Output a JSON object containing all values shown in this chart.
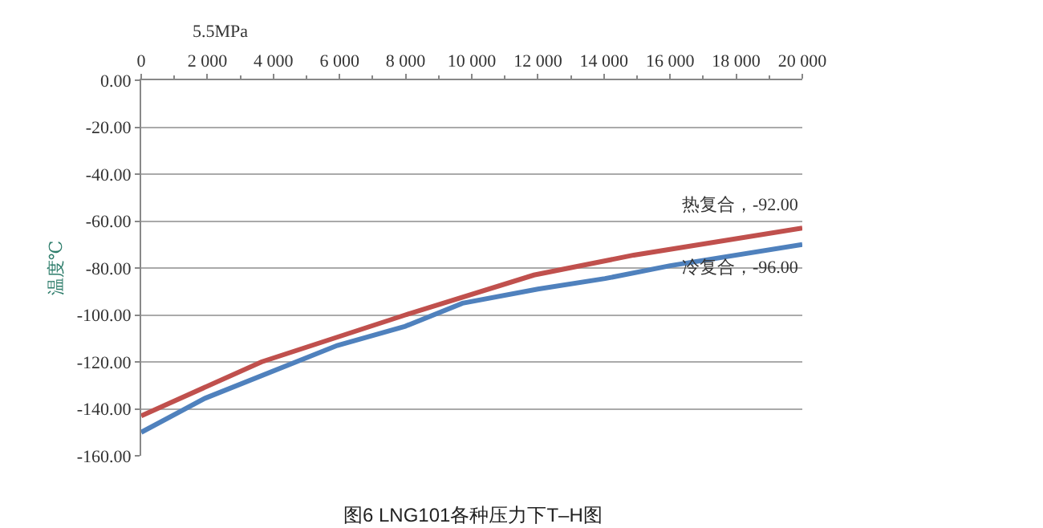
{
  "chart_data": {
    "type": "line",
    "title": "5.5MPa",
    "ylabel": "温度℃",
    "x": [
      0,
      3640,
      7990,
      11880,
      14900,
      20000
    ],
    "series": [
      {
        "name": "热复合，-92.00",
        "color": "#c0504d",
        "values": [
          -143,
          -120,
          -100,
          -83,
          -74.5,
          -63
        ]
      },
      {
        "name": "冷复合，-96.00",
        "color": "#4f81bd",
        "x": [
          0,
          1930,
          5930,
          7990,
          9720,
          12000,
          14030,
          16000,
          20000
        ],
        "values": [
          -150,
          -135.5,
          -113,
          -104.8,
          -95,
          -89,
          -84.5,
          -79,
          -70
        ]
      }
    ],
    "xlim": [
      0,
      20000
    ],
    "xticks": [
      {
        "value": 0,
        "label": "0"
      },
      {
        "value": 2000,
        "label": "2 000"
      },
      {
        "value": 4000,
        "label": "4 000"
      },
      {
        "value": 6000,
        "label": "6 000"
      },
      {
        "value": 8000,
        "label": "8 000"
      },
      {
        "value": 10000,
        "label": "10 000"
      },
      {
        "value": 12000,
        "label": "12 000"
      },
      {
        "value": 14000,
        "label": "14 000"
      },
      {
        "value": 16000,
        "label": "16 000"
      },
      {
        "value": 18000,
        "label": "18 000"
      },
      {
        "value": 20000,
        "label": "20 000"
      }
    ],
    "ylim": [
      -160,
      0
    ],
    "yticks": [
      {
        "value": 0,
        "label": "0.00"
      },
      {
        "value": -20,
        "label": "-20.00"
      },
      {
        "value": -40,
        "label": "-40.00"
      },
      {
        "value": -60,
        "label": "-60.00"
      },
      {
        "value": -80,
        "label": "-80.00"
      },
      {
        "value": -100,
        "label": "-100.00"
      },
      {
        "value": -120,
        "label": "-120.00"
      },
      {
        "value": -140,
        "label": "-140.00"
      },
      {
        "value": -160,
        "label": "-160.00"
      }
    ],
    "grid": "y",
    "legend": false,
    "marker": "none",
    "line_style": "solid",
    "annotations": [
      "图6 LNG101各种压力下T–H图"
    ]
  }
}
